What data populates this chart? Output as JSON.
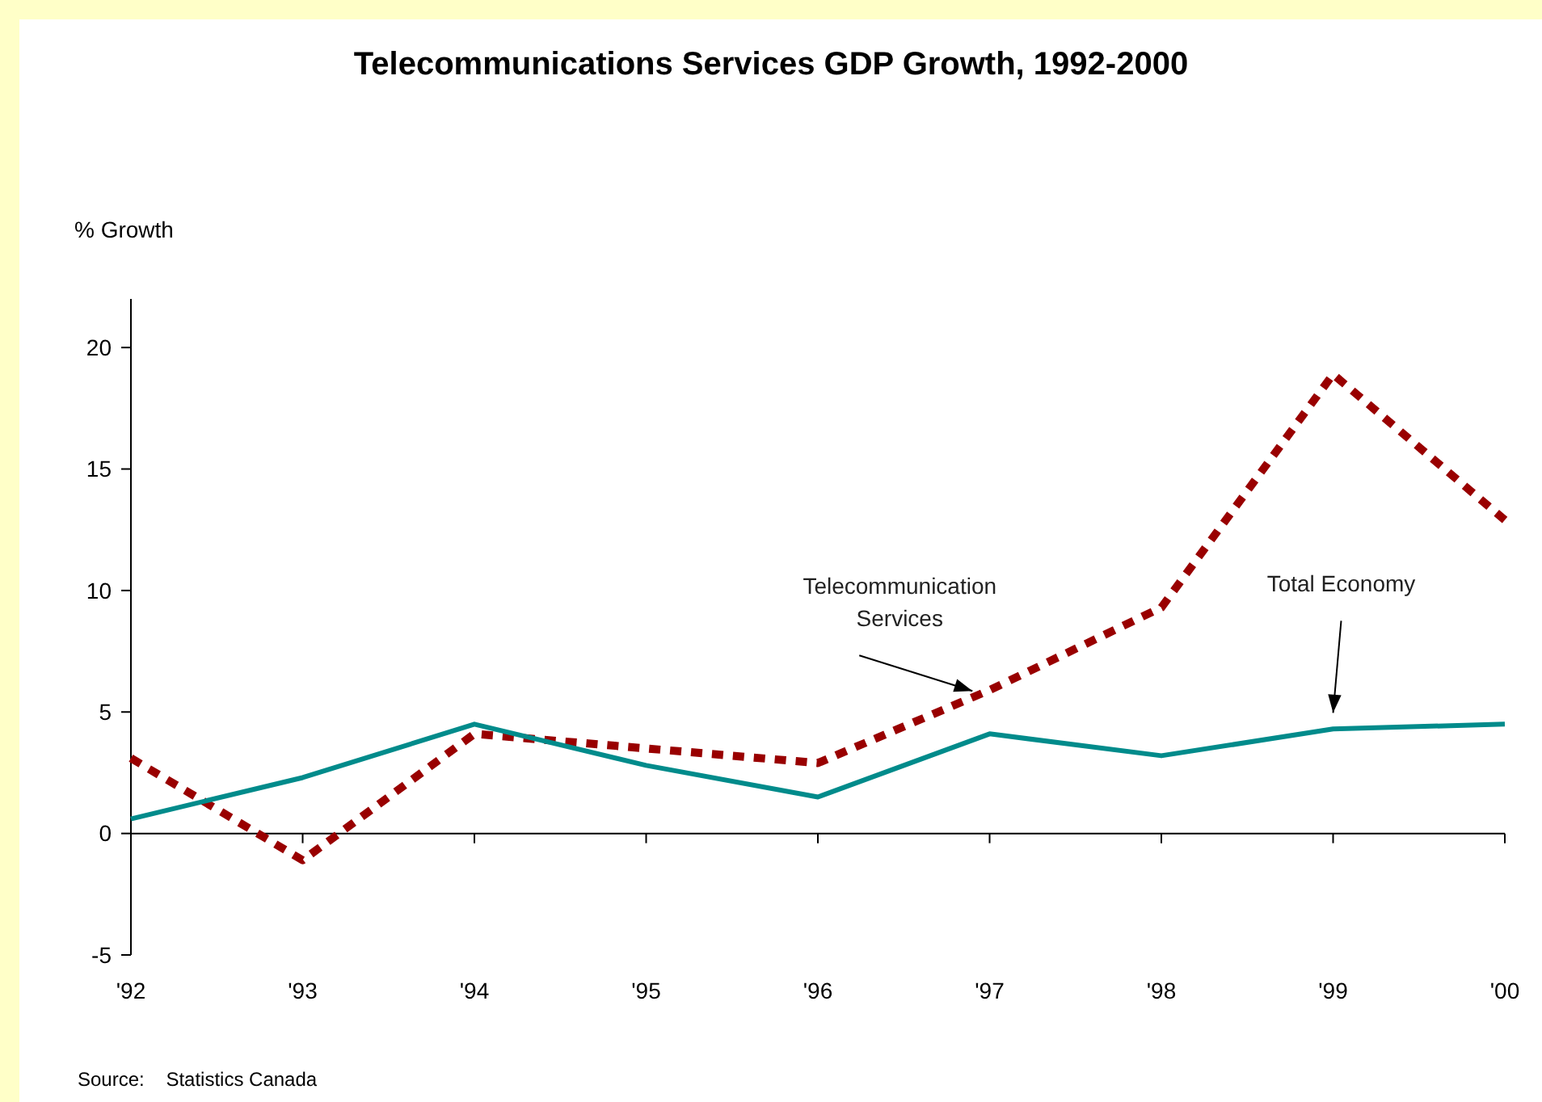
{
  "chart_data": {
    "type": "line",
    "title": "Telecommunications Services GDP Growth, 1992-2000",
    "ylabel": "% Growth",
    "categories": [
      "'92",
      "'93",
      "'94",
      "'95",
      "'96",
      "'97",
      "'98",
      "'99",
      "'00"
    ],
    "series": [
      {
        "name": "Telecommunication Services",
        "color": "#990000",
        "line_style": "dashed",
        "values": [
          3.1,
          -1.1,
          4.1,
          3.5,
          2.9,
          5.9,
          9.3,
          18.9,
          12.9
        ]
      },
      {
        "name": "Total Economy",
        "color": "#008b8b",
        "line_style": "solid",
        "values": [
          0.6,
          2.3,
          4.5,
          2.8,
          1.5,
          4.1,
          3.2,
          4.3,
          4.5
        ]
      }
    ],
    "ylim": [
      -5,
      22
    ],
    "yticks": [
      -5,
      0,
      5,
      10,
      15,
      20
    ],
    "annotations": [
      "Source:    Statistics Canada"
    ]
  }
}
